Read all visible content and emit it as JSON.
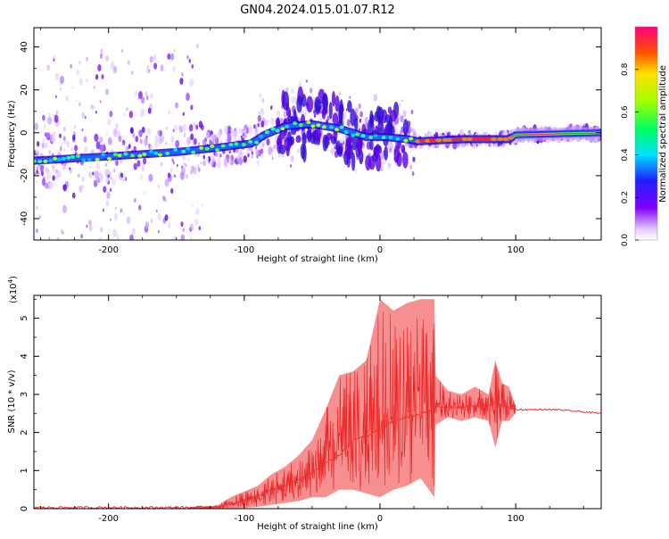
{
  "title": "GN04.2024.015.01.07.R12",
  "chart_data": [
    {
      "type": "heatmap",
      "xlabel": "Height of straight line (km)",
      "ylabel": "Frequency (Hz)",
      "xlim": [
        -255,
        163
      ],
      "ylim": [
        -50,
        49
      ],
      "xticks": [
        -200,
        -100,
        0,
        100
      ],
      "xtick_labels": [
        "-200",
        "-100",
        "0",
        "100"
      ],
      "yticks": [
        -40,
        -20,
        0,
        20,
        40
      ],
      "ytick_labels": [
        "-40",
        "-20",
        "0",
        "20",
        "40"
      ],
      "colorbar": {
        "label": "Normalized spectral amplitude",
        "range": [
          0,
          1
        ],
        "ticks": [
          0,
          0.2,
          0.4,
          0.6,
          0.8
        ],
        "tick_labels": [
          "0.0",
          "0.2",
          "0.4",
          "0.6",
          "0.8"
        ]
      },
      "ridge": {
        "x": [
          -255,
          -200,
          -150,
          -120,
          -95,
          -85,
          -70,
          -50,
          -30,
          -10,
          5,
          20,
          28,
          60,
          95,
          100,
          163
        ],
        "y": [
          -13,
          -11,
          -9,
          -7,
          -5,
          -1,
          3,
          4,
          2,
          -2,
          -2,
          -3,
          -4,
          -3,
          -3,
          -1,
          0
        ]
      }
    },
    {
      "type": "line",
      "xlabel": "Height of straight line (km)",
      "ylabel": "SNR (10 * v/v)",
      "multiplier_label": "(x10",
      "multiplier_exp": "4",
      "multiplier_close": ")",
      "xlim": [
        -255,
        163
      ],
      "ylim": [
        0,
        5.6
      ],
      "xticks": [
        -200,
        -100,
        0,
        100
      ],
      "xtick_labels": [
        "-200",
        "-100",
        "0",
        "100"
      ],
      "yticks": [
        0,
        1,
        2,
        3,
        4,
        5
      ],
      "ytick_labels": [
        "0",
        "1",
        "2",
        "3",
        "4",
        "5"
      ],
      "series": [
        {
          "name": "SNR",
          "color": "#ee3333",
          "x": [
            -255,
            -200,
            -160,
            -140,
            -130,
            -120,
            -110,
            -100,
            -90,
            -80,
            -70,
            -60,
            -50,
            -40,
            -30,
            -20,
            -10,
            0,
            10,
            20,
            30,
            40,
            41,
            50,
            60,
            70,
            80,
            85,
            90,
            95,
            100,
            130,
            163
          ],
          "y": [
            0.03,
            0.03,
            0.03,
            0.03,
            0.04,
            0.05,
            0.12,
            0.2,
            0.35,
            0.5,
            0.6,
            0.75,
            0.95,
            1.2,
            1.4,
            1.8,
            1.9,
            2.1,
            2.3,
            2.4,
            2.5,
            2.6,
            2.7,
            2.65,
            2.65,
            2.7,
            2.7,
            2.8,
            2.7,
            2.65,
            2.6,
            2.6,
            2.5
          ]
        }
      ],
      "envelope_max": {
        "x": [
          -140,
          -120,
          -110,
          -100,
          -90,
          -80,
          -70,
          -60,
          -50,
          -40,
          -30,
          -20,
          -10,
          0,
          10,
          20,
          30,
          40,
          41,
          50,
          60,
          70,
          80,
          85,
          90,
          95,
          100
        ],
        "y": [
          0.05,
          0.08,
          0.3,
          0.45,
          0.6,
          0.9,
          1.1,
          1.4,
          1.8,
          2.6,
          3.5,
          3.6,
          3.9,
          5.5,
          5.2,
          5.4,
          5.5,
          5.5,
          3.5,
          3.1,
          3.0,
          3.2,
          3.0,
          3.9,
          3.3,
          3.2,
          2.7
        ]
      },
      "envelope_min": {
        "x": [
          -140,
          -120,
          -110,
          -100,
          -90,
          -80,
          -70,
          -60,
          -50,
          -40,
          -30,
          -20,
          -10,
          0,
          10,
          20,
          30,
          40,
          41,
          50,
          60,
          70,
          80,
          85,
          90,
          95,
          100
        ],
        "y": [
          0.0,
          0.0,
          0.0,
          0.02,
          0.05,
          0.1,
          0.15,
          0.2,
          0.3,
          0.3,
          0.5,
          0.5,
          0.4,
          0.3,
          0.5,
          0.6,
          0.8,
          0.3,
          2.2,
          2.4,
          2.3,
          2.4,
          2.3,
          1.6,
          2.3,
          2.3,
          2.5
        ]
      }
    }
  ]
}
